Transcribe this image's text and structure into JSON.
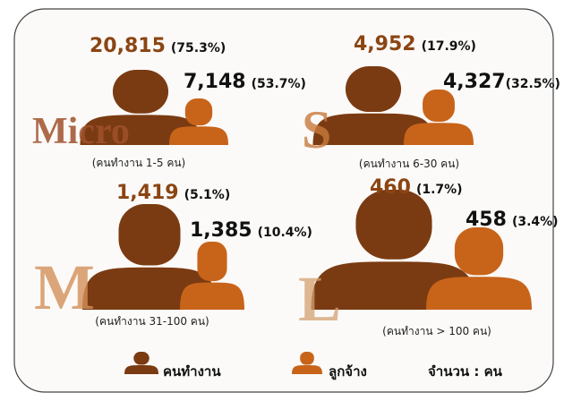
{
  "groups": [
    {
      "label": "Micro",
      "workers": "20,815",
      "workers_pct": "(75.3%)",
      "employees": "7,148",
      "employees_pct": "(53.7%)",
      "caption": "(คนทำงาน 1-5 คน)"
    },
    {
      "label": "S",
      "workers": "4,952",
      "workers_pct": "(17.9%)",
      "employees": "4,327",
      "employees_pct": "(32.5%)",
      "caption": "(คนทำงาน 6-30 คน)"
    },
    {
      "label": "M",
      "workers": "1,419",
      "workers_pct": "(5.1%)",
      "employees": "1,385",
      "employees_pct": "(10.4%)",
      "caption": "(คนทำงาน 31-100 คน)"
    },
    {
      "label": "L",
      "workers": "460",
      "workers_pct": "(1.7%)",
      "employees": "458",
      "employees_pct": "(3.4%)",
      "caption": "(คนทำงาน > 100 คน)"
    }
  ],
  "legend": {
    "workers": "คนทำงาน",
    "employees": "ลูกจ้าง",
    "unit": "จำนวน : คน"
  }
}
